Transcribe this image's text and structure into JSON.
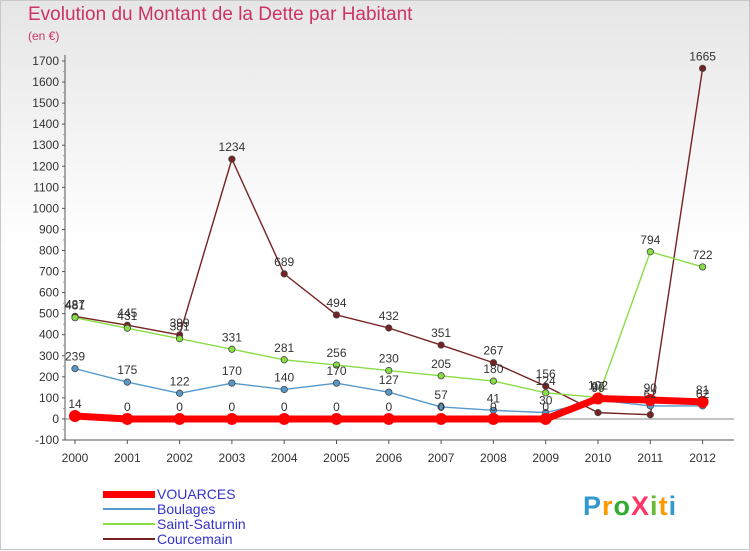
{
  "title": "Evolution du Montant de la Dette par Habitant",
  "subtitle": "(en €)",
  "logo": {
    "text": "ProXiti",
    "letter_colors": [
      "#3399cc",
      "#ff9900",
      "#33aa33",
      "#ff3366",
      "#66bb33",
      "#ff9900",
      "#3399cc"
    ]
  },
  "chart_data": {
    "type": "line",
    "title": "Evolution du Montant de la Dette par Habitant",
    "subtitle": "(en €)",
    "x": [
      "2000",
      "2001",
      "2002",
      "2003",
      "2004",
      "2005",
      "2006",
      "2007",
      "2008",
      "2009",
      "2010",
      "2011",
      "2012"
    ],
    "ylim": [
      -100,
      1700
    ],
    "yticks": [
      -100,
      0,
      100,
      200,
      300,
      400,
      500,
      600,
      700,
      800,
      900,
      1000,
      1100,
      1200,
      1300,
      1400,
      1500,
      1600,
      1700
    ],
    "grid": false,
    "legend_position": "bottom-left",
    "series": [
      {
        "name": "VOUARCES",
        "color": "#ff0000",
        "values": [
          14,
          0,
          0,
          0,
          0,
          0,
          0,
          0,
          0,
          0,
          97,
          90,
          81
        ],
        "labels": [
          "14",
          "0",
          "0",
          "0",
          "0",
          "0",
          "0",
          "0",
          "0",
          "0",
          "97",
          "90",
          "81"
        ]
      },
      {
        "name": "Boulages",
        "color": "#5599cc",
        "values": [
          239,
          175,
          122,
          170,
          140,
          170,
          127,
          57,
          41,
          30,
          90,
          62,
          62
        ],
        "labels": [
          "239",
          "175",
          "122",
          "170",
          "140",
          "170",
          "127",
          "57",
          "41",
          "30",
          "90",
          "62",
          "62"
        ]
      },
      {
        "name": "Saint-Saturnin",
        "color": "#88dd44",
        "values": [
          481,
          431,
          381,
          331,
          281,
          256,
          230,
          205,
          180,
          124,
          102,
          794,
          722
        ],
        "labels": [
          "481",
          "431",
          "381",
          "331",
          "281",
          "256",
          "230",
          "205",
          "180",
          "124",
          "102",
          "794",
          "722"
        ]
      },
      {
        "name": "Courcemain",
        "color": "#772222",
        "values": [
          487,
          445,
          399,
          1234,
          689,
          494,
          432,
          351,
          267,
          156,
          30,
          20,
          1665
        ],
        "labels": [
          "487",
          "445",
          "399",
          "1234",
          "689",
          "494",
          "432",
          "351",
          "267",
          "156",
          "",
          "",
          "1665"
        ]
      }
    ]
  }
}
